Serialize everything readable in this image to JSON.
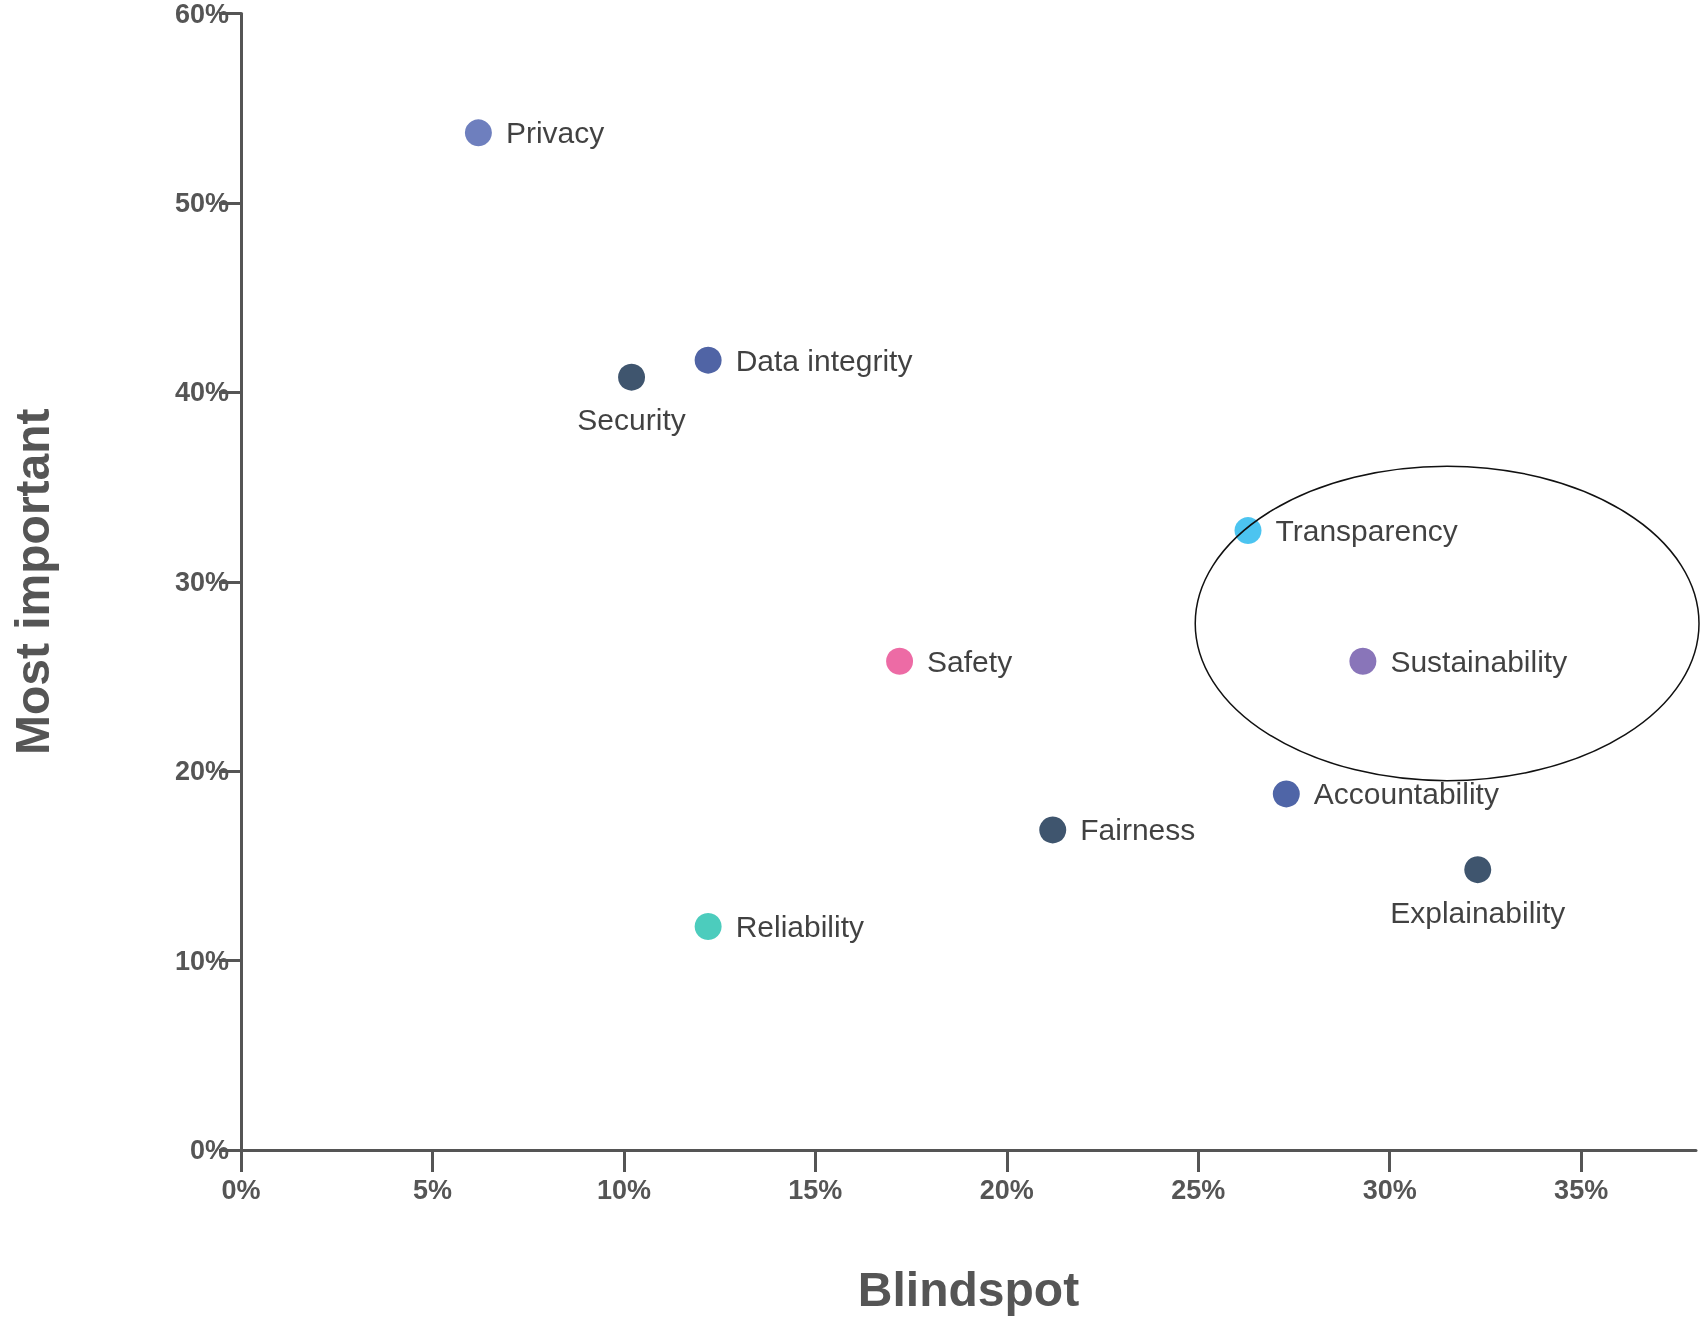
{
  "chart_data": {
    "type": "scatter",
    "xlabel": "Blindspot",
    "ylabel": "Most important",
    "xlim": [
      0,
      38
    ],
    "xticks": [
      {
        "value": 0,
        "label": "0%"
      },
      {
        "value": 5,
        "label": "5%"
      },
      {
        "value": 10,
        "label": "10%"
      },
      {
        "value": 15,
        "label": "15%"
      },
      {
        "value": 20,
        "label": "20%"
      },
      {
        "value": 25,
        "label": "25%"
      },
      {
        "value": 30,
        "label": "30%"
      },
      {
        "value": 35,
        "label": "35%"
      }
    ],
    "ylim": [
      0,
      60
    ],
    "yticks": [
      {
        "value": 0,
        "label": "0%"
      },
      {
        "value": 10,
        "label": "10%"
      },
      {
        "value": 20,
        "label": "20%"
      },
      {
        "value": 30,
        "label": "30%"
      },
      {
        "value": 40,
        "label": "40%"
      },
      {
        "value": 50,
        "label": "50%"
      },
      {
        "value": 60,
        "label": "60%"
      }
    ],
    "grid": false,
    "legend": false,
    "marker": "circle",
    "series": [
      {
        "name": "Privacy",
        "color": "#4a5fae",
        "x": [
          6.2
        ],
        "values": [
          53.7
        ]
      },
      {
        "name": "Security",
        "color": "#0f2a4a",
        "x": [
          10.2
        ],
        "values": [
          40.8
        ]
      },
      {
        "name": "Data integrity",
        "color": "#243d8f",
        "x": [
          12.2
        ],
        "values": [
          41.7
        ]
      },
      {
        "name": "Transparency",
        "color": "#1fb5ec",
        "x": [
          26.3
        ],
        "values": [
          32.7
        ]
      },
      {
        "name": "Sustainability",
        "color": "#6b52a8",
        "x": [
          29.3
        ],
        "values": [
          25.8
        ]
      },
      {
        "name": "Safety",
        "color": "#e8468e",
        "x": [
          17.2
        ],
        "values": [
          25.8
        ]
      },
      {
        "name": "Accountability",
        "color": "#233e91",
        "x": [
          27.3
        ],
        "values": [
          18.8
        ]
      },
      {
        "name": "Fairness",
        "color": "#0f2a4a",
        "x": [
          21.2
        ],
        "values": [
          16.9
        ]
      },
      {
        "name": "Explainability",
        "color": "#0f2a4a",
        "x": [
          32.3
        ],
        "values": [
          14.8
        ]
      },
      {
        "name": "Reliability",
        "color": "#1fbfad",
        "x": [
          12.2
        ],
        "values": [
          11.8
        ]
      }
    ]
  }
}
